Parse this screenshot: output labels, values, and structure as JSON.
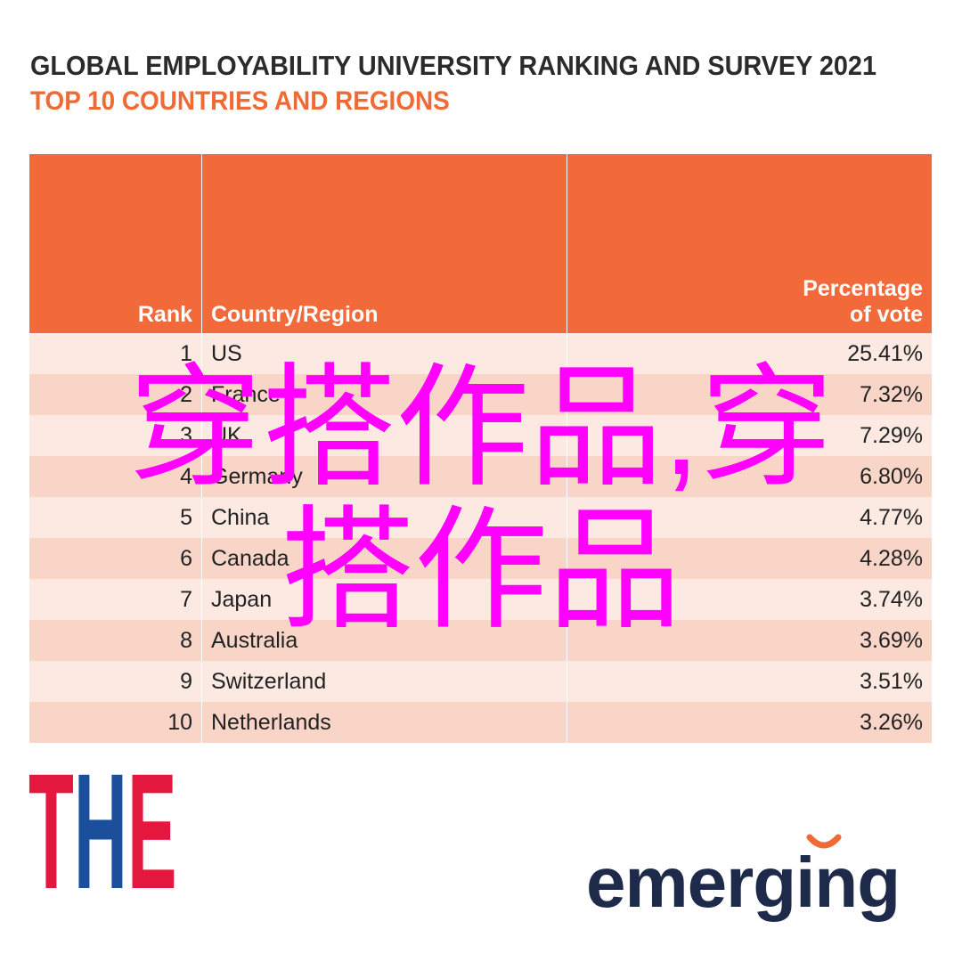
{
  "header": {
    "title": "GLOBAL EMPLOYABILITY UNIVERSITY RANKING AND SURVEY 2021",
    "subtitle": "TOP 10 COUNTRIES AND REGIONS"
  },
  "table": {
    "columns": [
      "Rank",
      "Country/Region",
      "Percentage of vote"
    ],
    "rows": [
      [
        "1",
        "US",
        "25.41%"
      ],
      [
        "2",
        "France",
        "7.32%"
      ],
      [
        "3",
        "UK",
        "7.29%"
      ],
      [
        "4",
        "Germany",
        "6.80%"
      ],
      [
        "5",
        "China",
        "4.77%"
      ],
      [
        "6",
        "Canada",
        "4.28%"
      ],
      [
        "7",
        "Japan",
        "3.74%"
      ],
      [
        "8",
        "Australia",
        "3.69%"
      ],
      [
        "9",
        "Switzerland",
        "3.51%"
      ],
      [
        "10",
        "Netherlands",
        "3.26%"
      ]
    ]
  },
  "logos": {
    "left": "THE",
    "right": "emerging"
  },
  "overlay": [
    "穿搭作品,穿",
    "搭作品"
  ]
}
